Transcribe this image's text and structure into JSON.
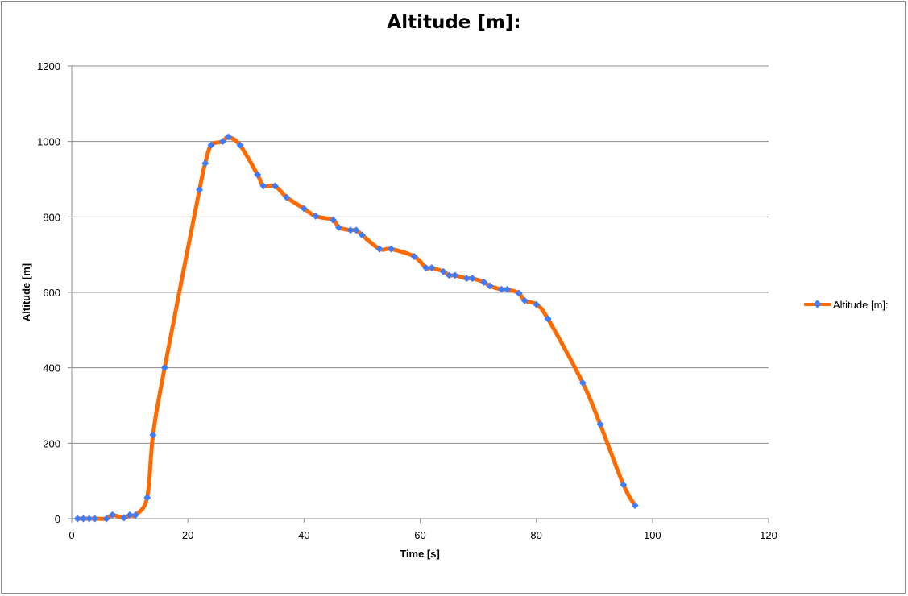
{
  "chart_data": {
    "type": "line",
    "title": "Altitude [m]:",
    "xlabel": "Time [s]",
    "ylabel": "Altitude [m]",
    "xlim": [
      0,
      120
    ],
    "ylim": [
      0,
      1200
    ],
    "x_ticks": [
      "0",
      "20",
      "40",
      "60",
      "80",
      "100",
      "120"
    ],
    "y_ticks": [
      "0",
      "200",
      "400",
      "600",
      "800",
      "1000",
      "1200"
    ],
    "grid": true,
    "smooth": true,
    "legend_position": "right",
    "series": [
      {
        "name": "Altitude [m]:",
        "color": "#FF6A00",
        "marker_color": "#3D7BFF",
        "marker": "diamond",
        "x": [
          1,
          2,
          3,
          4,
          6,
          7,
          9,
          10,
          11,
          13,
          14,
          16,
          22,
          23,
          24,
          26,
          27,
          29,
          32,
          33,
          35,
          37,
          40,
          42,
          45,
          46,
          48,
          49,
          50,
          53,
          55,
          59,
          61,
          62,
          64,
          65,
          66,
          68,
          69,
          71,
          72,
          74,
          75,
          77,
          78,
          80,
          82,
          88,
          91,
          95,
          97
        ],
        "values": [
          0,
          0,
          0,
          0,
          0,
          10,
          2,
          10,
          10,
          56,
          222,
          400,
          872,
          942,
          990,
          1000,
          1012,
          990,
          912,
          882,
          882,
          852,
          822,
          802,
          792,
          772,
          765,
          765,
          752,
          715,
          715,
          695,
          665,
          665,
          655,
          645,
          645,
          637,
          637,
          627,
          617,
          608,
          608,
          598,
          578,
          568,
          530,
          360,
          250,
          90,
          35
        ]
      }
    ]
  }
}
